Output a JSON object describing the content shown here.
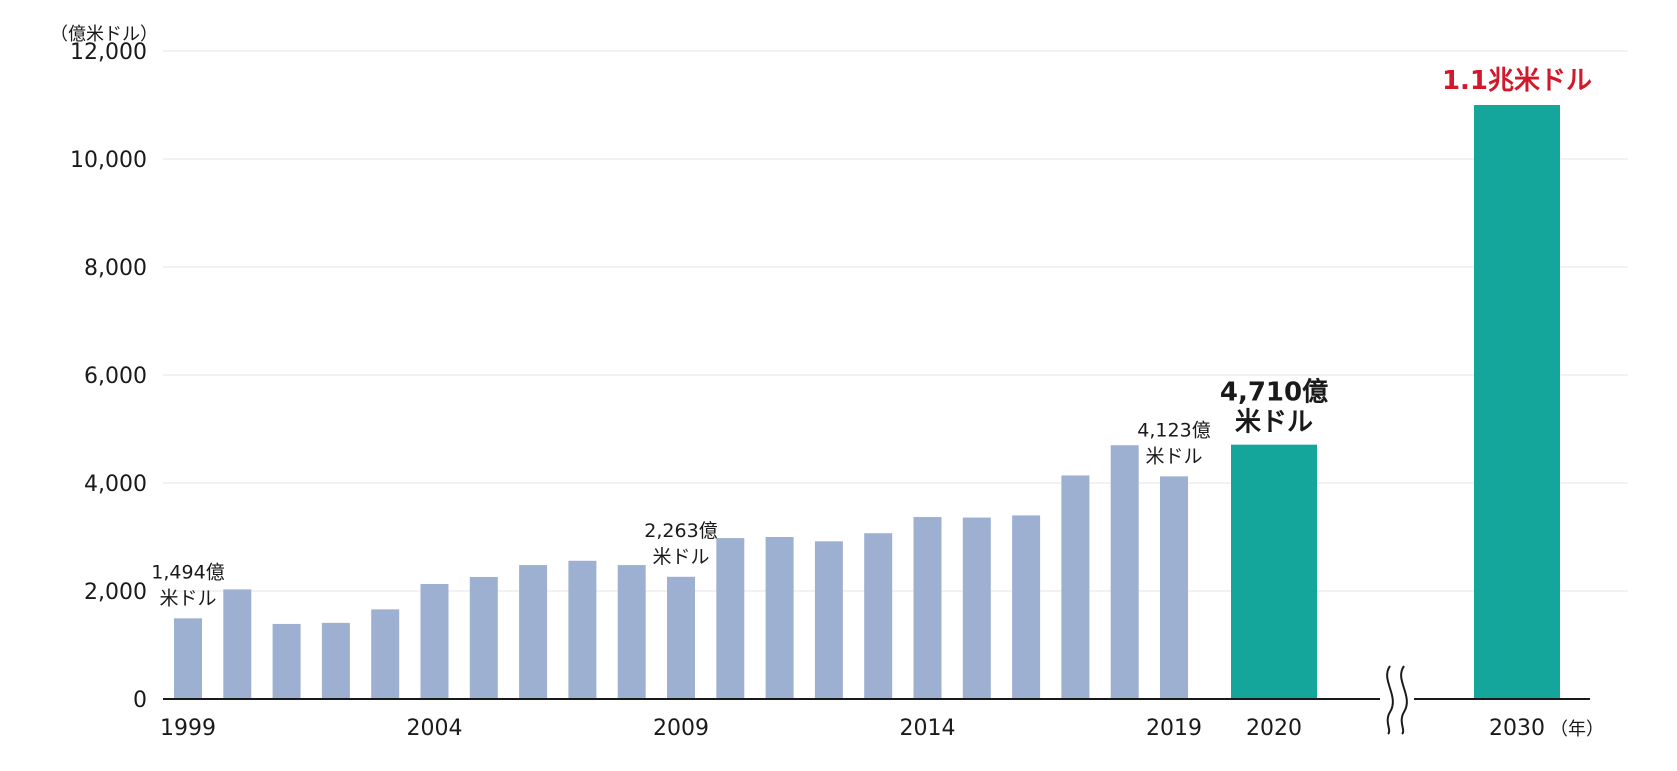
{
  "chart_data": {
    "type": "bar",
    "y_unit_label": "（億米ドル）",
    "x_unit_label": "（年）",
    "ylim": [
      0,
      12000
    ],
    "y_ticks": [
      "0",
      "2,000",
      "4,000",
      "6,000",
      "8,000",
      "10,000",
      "12,000"
    ],
    "y_tick_values": [
      0,
      2000,
      4000,
      6000,
      8000,
      10000,
      12000
    ],
    "grid": true,
    "axis_break_between": [
      "2020",
      "2030"
    ],
    "categories": [
      "1999",
      "2000",
      "2001",
      "2002",
      "2003",
      "2004",
      "2005",
      "2006",
      "2007",
      "2008",
      "2009",
      "2010",
      "2011",
      "2012",
      "2013",
      "2014",
      "2015",
      "2016",
      "2017",
      "2018",
      "2019",
      "2020",
      "2030"
    ],
    "x_tick_labels": [
      "1999",
      "2004",
      "2009",
      "2014",
      "2019",
      "2020",
      "2030"
    ],
    "series": [
      {
        "values": [
          1494,
          2030,
          1390,
          1410,
          1660,
          2130,
          2260,
          2480,
          2560,
          2480,
          2263,
          2980,
          3000,
          2920,
          3070,
          3370,
          3360,
          3400,
          4140,
          4700,
          4123,
          null,
          null
        ],
        "color": "#9eb0d1"
      },
      {
        "values": [
          null,
          null,
          null,
          null,
          null,
          null,
          null,
          null,
          null,
          null,
          null,
          null,
          null,
          null,
          null,
          null,
          null,
          null,
          null,
          null,
          null,
          4710,
          11000
        ],
        "color": "#14a69b"
      }
    ],
    "annotations": [
      {
        "category": "1999",
        "lines": [
          "1,494億",
          "米ドル"
        ],
        "style": "normal"
      },
      {
        "category": "2009",
        "lines": [
          "2,263億",
          "米ドル"
        ],
        "style": "normal"
      },
      {
        "category": "2019",
        "lines": [
          "4,123億",
          "米ドル"
        ],
        "style": "normal"
      },
      {
        "category": "2020",
        "lines": [
          "4,710億",
          "米ドル"
        ],
        "style": "big"
      },
      {
        "category": "2030",
        "lines": [
          "1.1兆米ドル"
        ],
        "style": "red"
      }
    ]
  }
}
